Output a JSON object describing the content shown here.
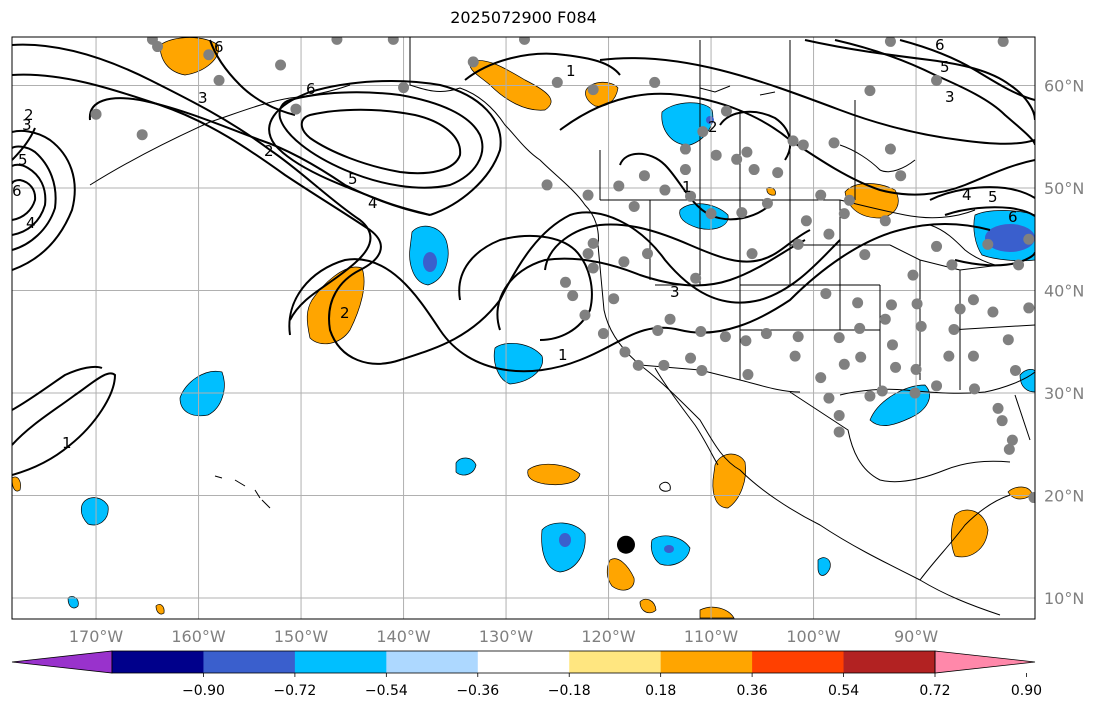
{
  "title": "2025072900 F084",
  "colors": {
    "frame": "#000000",
    "grid": "#b0b0b0",
    "contour": "#000000",
    "station": "#808080",
    "storm": "#000000",
    "tick_label": "#808080"
  },
  "lon_ticks": [
    {
      "value": -170,
      "label": "170°W"
    },
    {
      "value": -160,
      "label": "160°W"
    },
    {
      "value": -150,
      "label": "150°W"
    },
    {
      "value": -140,
      "label": "140°W"
    },
    {
      "value": -130,
      "label": "130°W"
    },
    {
      "value": -120,
      "label": "120°W"
    },
    {
      "value": -110,
      "label": "110°W"
    },
    {
      "value": -100,
      "label": "100°W"
    },
    {
      "value": -90,
      "label": "90°W"
    }
  ],
  "lat_ticks": [
    {
      "value": 10,
      "label": "10°N"
    },
    {
      "value": 20,
      "label": "20°N"
    },
    {
      "value": 30,
      "label": "30°N"
    },
    {
      "value": 40,
      "label": "40°N"
    },
    {
      "value": 50,
      "label": "50°N"
    },
    {
      "value": 60,
      "label": "60°N"
    }
  ],
  "colorbar": {
    "ticks": [
      "−0.90",
      "−0.72",
      "−0.54",
      "−0.36",
      "−0.18",
      "0.18",
      "0.36",
      "0.54",
      "0.72",
      "0.90"
    ],
    "colors": [
      "#9932cc",
      "#00008b",
      "#3a5fcd",
      "#00bfff",
      "#add8ff",
      "#ffffff",
      "#ffe680",
      "#ffa500",
      "#ff4000",
      "#b22222",
      "#ff88aa"
    ]
  },
  "contour_labels": [
    "1",
    "2",
    "3",
    "4",
    "5",
    "6"
  ],
  "storm_center": {
    "lon": -118.3,
    "lat": 15.2
  }
}
